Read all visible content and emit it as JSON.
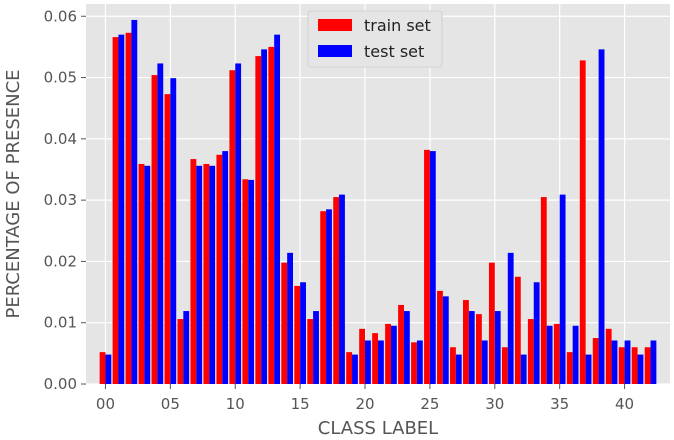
{
  "chart_data": {
    "type": "bar",
    "xlabel": "CLASS LABEL",
    "ylabel": "PERCENTAGE OF PRESENCE",
    "xlim": [
      -1.5,
      43.5
    ],
    "ylim": [
      0,
      0.062
    ],
    "xticks": [
      0,
      5,
      10,
      15,
      20,
      25,
      30,
      35,
      40
    ],
    "xtick_labels": [
      "00",
      "05",
      "10",
      "15",
      "20",
      "25",
      "30",
      "35",
      "40"
    ],
    "yticks": [
      0,
      0.01,
      0.02,
      0.03,
      0.04,
      0.05,
      0.06
    ],
    "ytick_labels": [
      "0.00",
      "0.01",
      "0.02",
      "0.03",
      "0.04",
      "0.05",
      "0.06"
    ],
    "grid": true,
    "legend_position": "top-center",
    "categories": [
      0,
      1,
      2,
      3,
      4,
      5,
      6,
      7,
      8,
      9,
      10,
      11,
      12,
      13,
      14,
      15,
      16,
      17,
      18,
      19,
      20,
      21,
      22,
      23,
      24,
      25,
      26,
      27,
      28,
      29,
      30,
      31,
      32,
      33,
      34,
      35,
      36,
      37,
      38,
      39,
      40,
      41,
      42
    ],
    "series": [
      {
        "name": "train set",
        "color": "#ff0000",
        "values": [
          0.0052,
          0.0566,
          0.0573,
          0.0359,
          0.0504,
          0.0473,
          0.0106,
          0.0367,
          0.0359,
          0.0374,
          0.0512,
          0.0334,
          0.0535,
          0.055,
          0.0198,
          0.016,
          0.0106,
          0.0282,
          0.0305,
          0.0052,
          0.009,
          0.0083,
          0.0098,
          0.0129,
          0.0068,
          0.0382,
          0.0152,
          0.006,
          0.0137,
          0.0114,
          0.0198,
          0.006,
          0.0175,
          0.0106,
          0.0305,
          0.0098,
          0.0052,
          0.0528,
          0.0075,
          0.009,
          0.006,
          0.006,
          0.006
        ]
      },
      {
        "name": "test set",
        "color": "#0000ff",
        "values": [
          0.0048,
          0.057,
          0.0594,
          0.0356,
          0.0523,
          0.0499,
          0.0119,
          0.0356,
          0.0356,
          0.038,
          0.0523,
          0.0333,
          0.0546,
          0.057,
          0.0214,
          0.0166,
          0.0119,
          0.0285,
          0.0309,
          0.0048,
          0.0071,
          0.0071,
          0.0095,
          0.0119,
          0.0071,
          0.038,
          0.0143,
          0.0048,
          0.0119,
          0.0071,
          0.0119,
          0.0214,
          0.0048,
          0.0166,
          0.0095,
          0.0309,
          0.0095,
          0.0048,
          0.0546,
          0.0071,
          0.0071,
          0.0048,
          0.0071
        ]
      }
    ]
  }
}
